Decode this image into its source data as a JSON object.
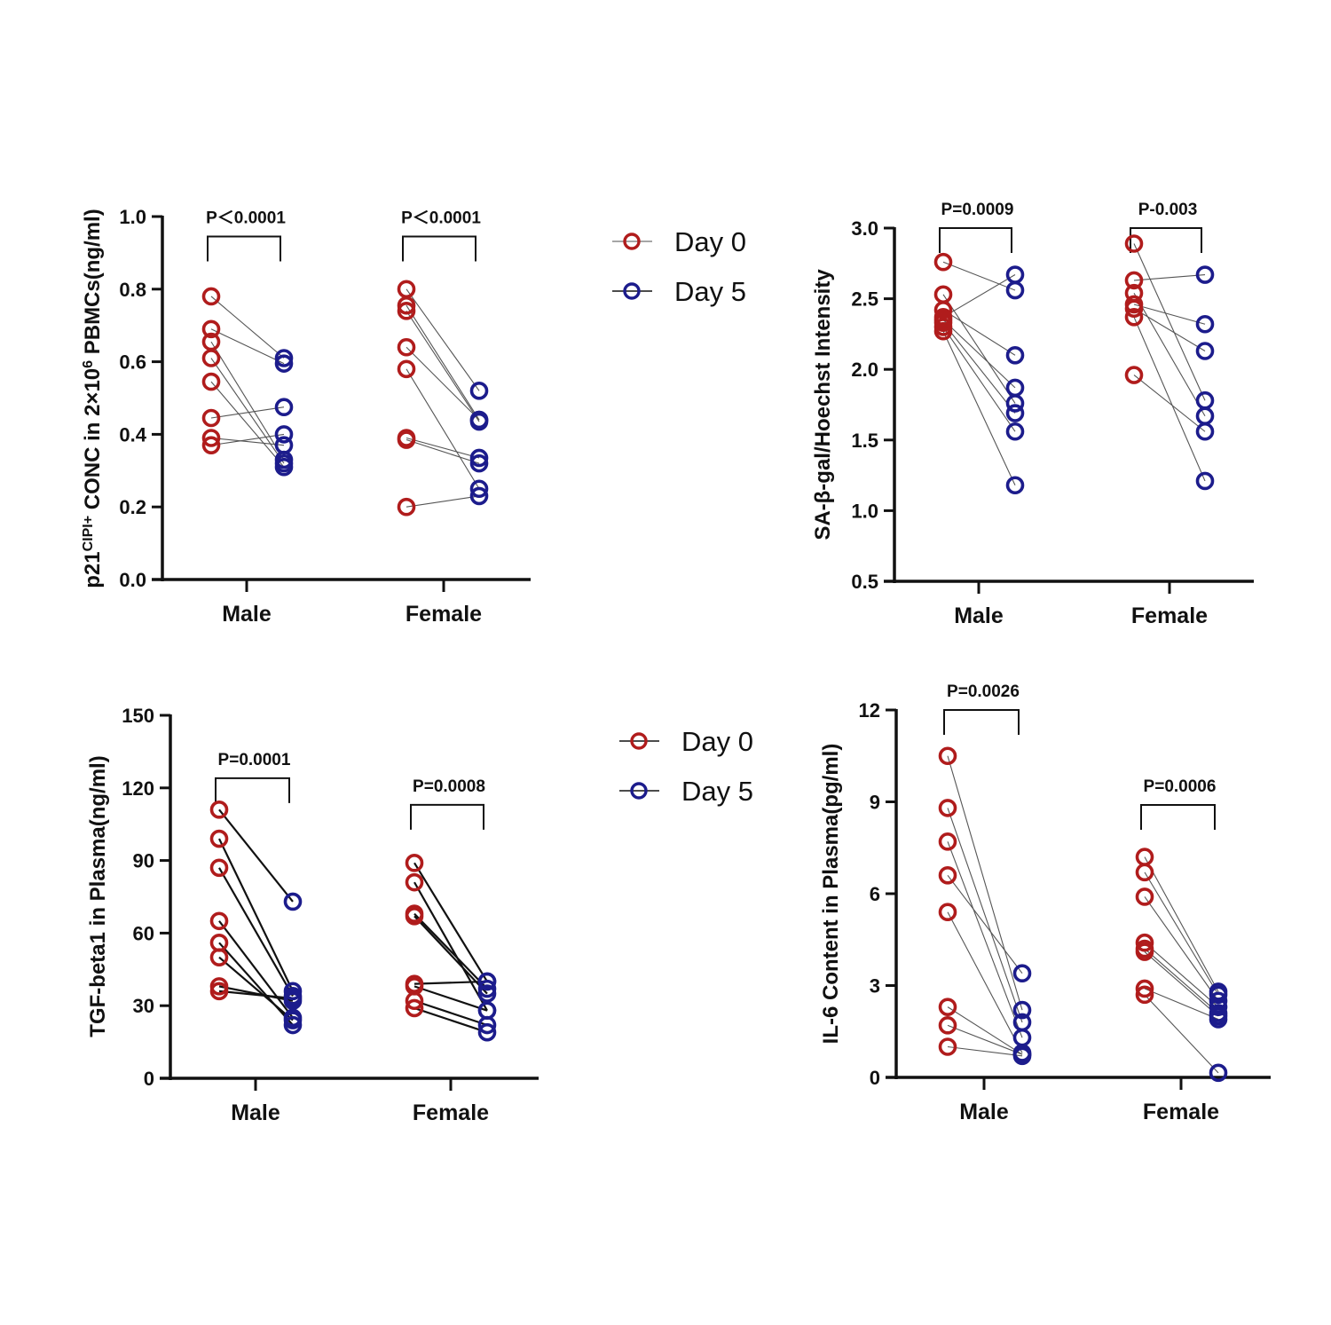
{
  "colors": {
    "day0": "#b01c1c",
    "day5": "#1c1c8c",
    "axis": "#111111",
    "pair_line_thin": "#555555",
    "pair_line_bold": "#111111"
  },
  "legends": [
    {
      "items": [
        {
          "label": "Day 0",
          "series": "day0"
        },
        {
          "label": "Day 5",
          "series": "day5"
        }
      ]
    },
    {
      "items": [
        {
          "label": "Day 0",
          "series": "day0"
        },
        {
          "label": "Day 5",
          "series": "day5"
        }
      ]
    }
  ],
  "chart_data": [
    {
      "type": "scatter",
      "subtype": "paired before-after",
      "title": "",
      "ylabel": "p21CIPI+ CONC in 2×10^6 PBMCs(ng/ml)",
      "ylabel_parts": {
        "main1": "p21",
        "sup1": "CIPI+",
        "main2": " CONC in 2×10",
        "sup2": "6",
        "main3": " PBMCs(ng/ml)"
      },
      "xlabel": "",
      "categories": [
        "Male",
        "Female"
      ],
      "ylim": [
        0,
        1.0
      ],
      "yticks": [
        0.0,
        0.2,
        0.4,
        0.6,
        0.8,
        1.0
      ],
      "ytick_labels": [
        "0.0",
        "0.2",
        "0.4",
        "0.6",
        "0.8",
        "1.0"
      ],
      "legend": [
        "Day 0",
        "Day 5"
      ],
      "grid": false,
      "annotations": [
        {
          "category": "Male",
          "text": "P＜0.0001",
          "bracket_value": 0.945
        },
        {
          "category": "Female",
          "text": "P＜0.0001",
          "bracket_value": 0.945
        }
      ],
      "groups": [
        {
          "category": "Male",
          "pairs": [
            [
              0.78,
              0.61
            ],
            [
              0.69,
              0.595
            ],
            [
              0.655,
              0.33
            ],
            [
              0.61,
              0.32
            ],
            [
              0.545,
              0.31
            ],
            [
              0.445,
              0.475
            ],
            [
              0.39,
              0.37
            ],
            [
              0.37,
              0.4
            ]
          ]
        },
        {
          "category": "Female",
          "pairs": [
            [
              0.8,
              0.52
            ],
            [
              0.755,
              0.44
            ],
            [
              0.74,
              0.435
            ],
            [
              0.64,
              0.44
            ],
            [
              0.58,
              0.25
            ],
            [
              0.39,
              0.335
            ],
            [
              0.385,
              0.32
            ],
            [
              0.2,
              0.23
            ]
          ]
        }
      ]
    },
    {
      "type": "scatter",
      "subtype": "paired before-after",
      "title": "",
      "ylabel": "SA-β-gal/Hoechst Intensity",
      "xlabel": "",
      "categories": [
        "Male",
        "Female"
      ],
      "ylim": [
        0.5,
        3.0
      ],
      "yticks": [
        0.5,
        1.0,
        1.5,
        2.0,
        2.5,
        3.0
      ],
      "ytick_labels": [
        "0.5",
        "1.0",
        "1.5",
        "2.0",
        "2.5",
        "3.0"
      ],
      "grid": false,
      "annotations": [
        {
          "category": "Male",
          "text": "P=0.0009",
          "bracket_value": 3.0
        },
        {
          "category": "Female",
          "text": "P-0.003",
          "bracket_value": 3.0
        }
      ],
      "groups": [
        {
          "category": "Male",
          "pairs": [
            [
              2.76,
              2.56
            ],
            [
              2.53,
              1.76
            ],
            [
              2.42,
              2.1
            ],
            [
              2.37,
              2.67
            ],
            [
              2.35,
              1.87
            ],
            [
              2.33,
              1.69
            ],
            [
              2.3,
              1.56
            ],
            [
              2.27,
              1.18
            ]
          ]
        },
        {
          "category": "Female",
          "pairs": [
            [
              2.89,
              1.78
            ],
            [
              2.63,
              2.67
            ],
            [
              2.54,
              1.67
            ],
            [
              2.46,
              2.32
            ],
            [
              2.43,
              2.13
            ],
            [
              2.37,
              1.21
            ],
            [
              1.96,
              1.56
            ]
          ]
        }
      ]
    },
    {
      "type": "scatter",
      "subtype": "paired before-after",
      "title": "",
      "ylabel": "TGF-beta1 in Plasma(ng/ml)",
      "xlabel": "",
      "categories": [
        "Male",
        "Female"
      ],
      "ylim": [
        0,
        150
      ],
      "yticks": [
        0,
        30,
        60,
        90,
        120,
        150
      ],
      "ytick_labels": [
        "0",
        "30",
        "60",
        "90",
        "120",
        "150"
      ],
      "grid": false,
      "annotations": [
        {
          "category": "Male",
          "text": "P=0.0001",
          "bracket_value": 124
        },
        {
          "category": "Female",
          "text": "P=0.0008",
          "bracket_value": 113
        }
      ],
      "groups": [
        {
          "category": "Male",
          "pairs": [
            [
              111,
              73
            ],
            [
              99,
              36
            ],
            [
              87,
              34
            ],
            [
              65,
              25
            ],
            [
              56,
              22
            ],
            [
              50,
              24
            ],
            [
              38,
              32
            ],
            [
              36,
              33
            ]
          ]
        },
        {
          "category": "Female",
          "pairs": [
            [
              89,
              40
            ],
            [
              81,
              28
            ],
            [
              68,
              37
            ],
            [
              67,
              35
            ],
            [
              39,
              40
            ],
            [
              38,
              28
            ],
            [
              32,
              22
            ],
            [
              29,
              19
            ]
          ]
        }
      ]
    },
    {
      "type": "scatter",
      "subtype": "paired before-after",
      "title": "",
      "ylabel": "IL-6 Content in Plasma(pg/ml)",
      "xlabel": "",
      "categories": [
        "Male",
        "Female"
      ],
      "ylim": [
        0,
        12
      ],
      "yticks": [
        0,
        3,
        6,
        9,
        12
      ],
      "ytick_labels": [
        "0",
        "3",
        "6",
        "9",
        "12"
      ],
      "grid": false,
      "annotations": [
        {
          "category": "Male",
          "text": "P=0.0026",
          "bracket_value": 12.0
        },
        {
          "category": "Female",
          "text": "P=0.0006",
          "bracket_value": 8.9
        }
      ],
      "groups": [
        {
          "category": "Male",
          "pairs": [
            [
              10.5,
              2.2
            ],
            [
              8.8,
              1.8
            ],
            [
              7.7,
              1.3
            ],
            [
              6.6,
              3.4
            ],
            [
              5.4,
              0.8
            ],
            [
              2.3,
              0.75
            ],
            [
              1.7,
              0.75
            ],
            [
              1.0,
              0.7
            ]
          ]
        },
        {
          "category": "Female",
          "pairs": [
            [
              7.2,
              2.8
            ],
            [
              6.7,
              2.7
            ],
            [
              5.9,
              2.5
            ],
            [
              4.4,
              2.3
            ],
            [
              4.2,
              2.1
            ],
            [
              4.1,
              2.0
            ],
            [
              2.9,
              1.9
            ],
            [
              2.7,
              0.15
            ]
          ]
        }
      ]
    }
  ]
}
